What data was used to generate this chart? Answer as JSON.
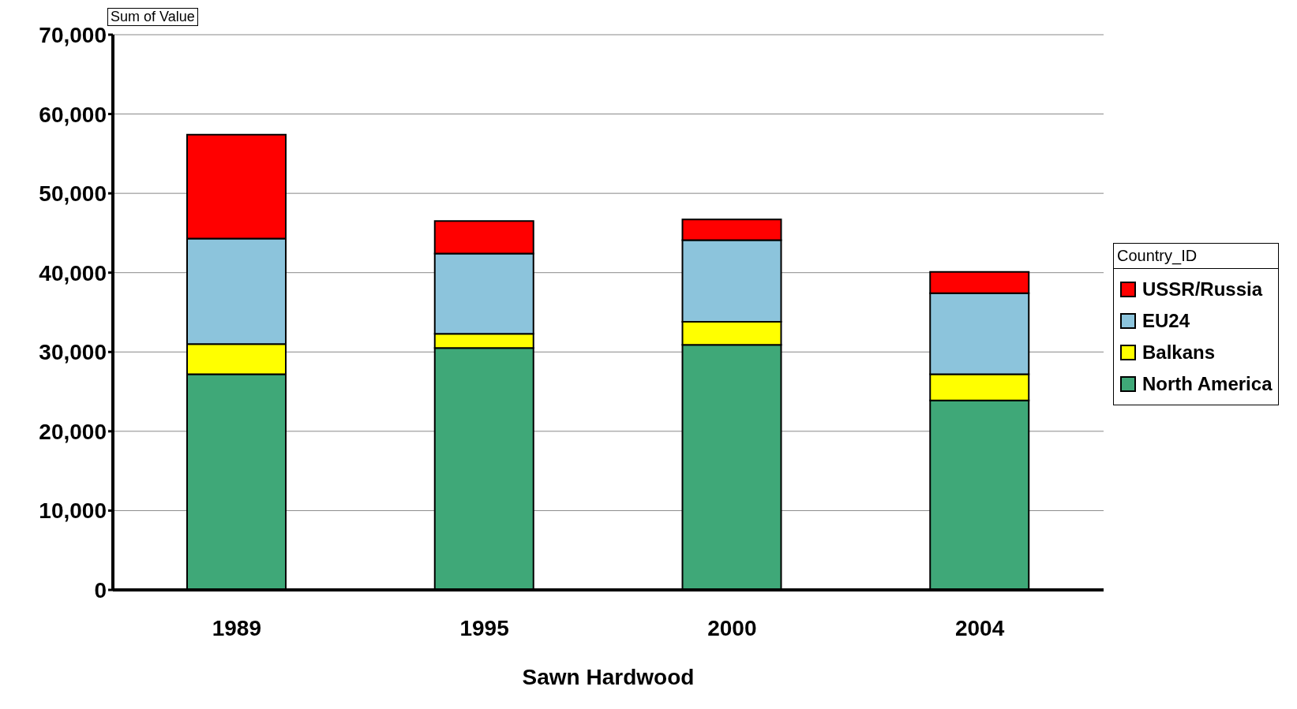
{
  "chart_data": {
    "type": "bar",
    "stacked": true,
    "xlabel": "Sawn Hardwood",
    "legend_title": "Country_ID",
    "annotations": [
      "Sum of Value"
    ],
    "categories": [
      "1989",
      "1995",
      "2000",
      "2004"
    ],
    "series": [
      {
        "name": "North America",
        "color": "#3fa878",
        "values": [
          27200,
          30500,
          30900,
          23900
        ]
      },
      {
        "name": "Balkans",
        "color": "#ffff00",
        "values": [
          3800,
          1800,
          2900,
          3300
        ]
      },
      {
        "name": "EU24",
        "color": "#8cc4dc",
        "values": [
          13300,
          10100,
          10300,
          10200
        ]
      },
      {
        "name": "USSR/Russia",
        "color": "#ff0000",
        "values": [
          13100,
          4100,
          2600,
          2700
        ]
      }
    ],
    "ylim": [
      0,
      70000
    ],
    "yticks": [
      0,
      {
        "value": 10000,
        "label": "10,000"
      },
      {
        "value": 20000,
        "label": "20,000"
      },
      {
        "value": 30000,
        "label": "30,000"
      },
      {
        "value": 40000,
        "label": "40,000"
      },
      {
        "value": 50000,
        "label": "50,000"
      },
      {
        "value": 60000,
        "label": "60,000"
      },
      {
        "value": 70000,
        "label": "70,000"
      }
    ],
    "grid": "y",
    "legend": "right"
  }
}
